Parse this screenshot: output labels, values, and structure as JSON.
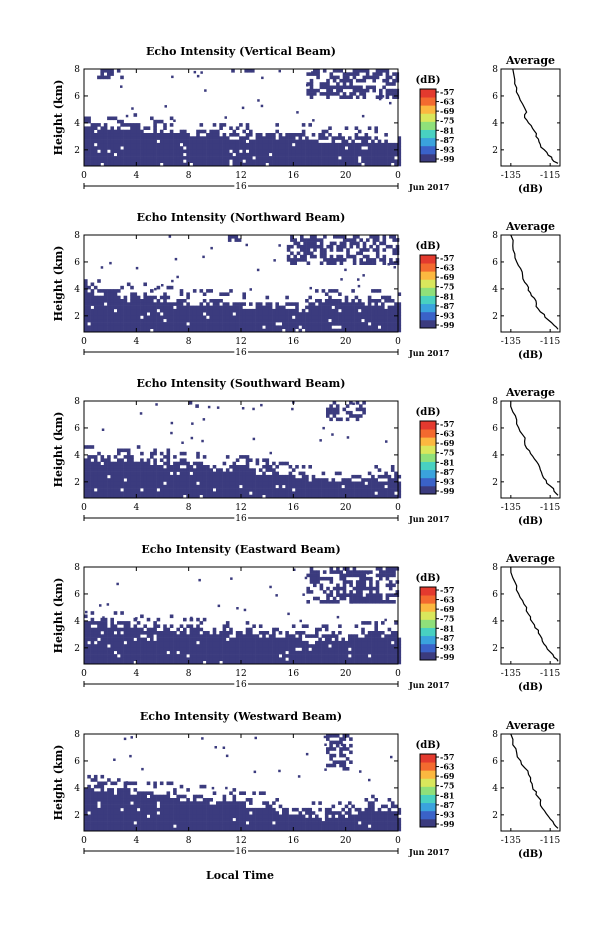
{
  "figure": {
    "xlabel": "Local Time",
    "date_label": "Jun 2017",
    "day_label": "16",
    "colorbar_unit": "(dB)",
    "avg_title": "Average",
    "avg_xlabel": "(dB)",
    "colors": [
      "#3b3b7e",
      "#3a62c8",
      "#3aa3dd",
      "#48d1c1",
      "#8fe07a",
      "#d9e75c",
      "#fbb840",
      "#f36a2f",
      "#e33a2e"
    ]
  },
  "chart_data": [
    {
      "type": "heatmap",
      "title": "Echo Intensity (Vertical Beam)",
      "ylabel": "Height (km)",
      "x_ticks": [
        "0",
        "4",
        "8",
        "12",
        "16",
        "20",
        "0"
      ],
      "y_ticks": [
        "2",
        "4",
        "6",
        "8"
      ],
      "xlim": [
        0,
        24
      ],
      "ylim": [
        0.8,
        8.0
      ],
      "colorbar_ticks": [
        "-57",
        "-63",
        "-69",
        "-75",
        "-81",
        "-87",
        "-93",
        "-99"
      ],
      "low_echo": [
        4.1,
        4.1,
        4.0,
        3.8,
        3.6,
        3.5,
        3.4,
        3.4,
        3.3,
        3.2,
        3.1,
        3.0,
        3.0
      ],
      "high_echo": [
        [
          17,
          24,
          6.0,
          8.0
        ],
        [
          1,
          3,
          7.5,
          8.0
        ],
        [
          11,
          13,
          7.8,
          8.0
        ]
      ],
      "average": {
        "title": "Average",
        "xlabel": "(dB)",
        "x_ticks": [
          "-135",
          "-115"
        ],
        "y_ticks": [
          "2",
          "4",
          "6",
          "8"
        ],
        "xlim": [
          -140,
          -110
        ],
        "ylim": [
          0.8,
          8.0
        ],
        "x": [
          -111,
          -114,
          -116,
          -118,
          -120,
          -121,
          -122,
          -124,
          -126,
          -128,
          -127,
          -129,
          -131,
          -132,
          -133,
          -134
        ],
        "y": [
          1.0,
          1.3,
          1.6,
          2.0,
          2.4,
          2.8,
          3.2,
          3.6,
          4.0,
          4.4,
          4.8,
          5.4,
          6.0,
          6.6,
          7.2,
          8.0
        ]
      }
    },
    {
      "type": "heatmap",
      "title": "Echo Intensity (Northward Beam)",
      "ylabel": "Height (km)",
      "x_ticks": [
        "0",
        "4",
        "8",
        "12",
        "16",
        "20",
        "0"
      ],
      "y_ticks": [
        "2",
        "4",
        "6",
        "8"
      ],
      "xlim": [
        0,
        24
      ],
      "ylim": [
        0.8,
        8.0
      ],
      "colorbar_ticks": [
        "-57",
        "-63",
        "-69",
        "-75",
        "-81",
        "-87",
        "-93",
        "-99"
      ],
      "low_echo": [
        4.0,
        4.0,
        3.8,
        3.6,
        3.4,
        3.3,
        3.2,
        3.2,
        3.0,
        3.4,
        3.5,
        3.4,
        3.3
      ],
      "high_echo": [
        [
          15.5,
          24,
          6.0,
          8.0
        ],
        [
          11,
          12,
          7.6,
          8.0
        ]
      ],
      "average": {
        "title": "Average",
        "xlabel": "(dB)",
        "x_ticks": [
          "-135",
          "-115"
        ],
        "y_ticks": [
          "2",
          "4",
          "6",
          "8"
        ],
        "xlim": [
          -140,
          -110
        ],
        "ylim": [
          0.8,
          8.0
        ],
        "x": [
          -111,
          -113,
          -116,
          -118,
          -121,
          -122,
          -123,
          -125,
          -126,
          -128,
          -129,
          -130,
          -132,
          -133,
          -134,
          -135
        ],
        "y": [
          1.0,
          1.3,
          1.7,
          2.1,
          2.5,
          2.9,
          3.3,
          3.7,
          4.1,
          4.5,
          5.0,
          5.5,
          6.0,
          6.6,
          7.2,
          8.0
        ]
      }
    },
    {
      "type": "heatmap",
      "title": "Echo Intensity (Southward Beam)",
      "ylabel": "Height (km)",
      "x_ticks": [
        "0",
        "4",
        "8",
        "12",
        "16",
        "20",
        "0"
      ],
      "y_ticks": [
        "2",
        "4",
        "6",
        "8"
      ],
      "xlim": [
        0,
        24
      ],
      "ylim": [
        0.8,
        8.0
      ],
      "colorbar_ticks": [
        "-57",
        "-63",
        "-69",
        "-75",
        "-81",
        "-87",
        "-93",
        "-99"
      ],
      "low_echo": [
        4.2,
        4.1,
        4.0,
        3.8,
        3.6,
        3.4,
        3.3,
        3.1,
        2.8,
        2.5,
        2.5,
        2.6,
        2.8
      ],
      "high_echo": [
        [
          18.5,
          21.5,
          6.6,
          8.0
        ],
        [
          8,
          9,
          7.6,
          8.0
        ]
      ],
      "average": {
        "title": "Average",
        "xlabel": "(dB)",
        "x_ticks": [
          "-135",
          "-115"
        ],
        "y_ticks": [
          "2",
          "4",
          "6",
          "8"
        ],
        "xlim": [
          -140,
          -110
        ],
        "ylim": [
          0.8,
          8.0
        ],
        "x": [
          -111,
          -113,
          -115,
          -117,
          -119,
          -120,
          -121,
          -123,
          -125,
          -127,
          -128,
          -129,
          -131,
          -132,
          -134,
          -135
        ],
        "y": [
          1.0,
          1.3,
          1.7,
          2.1,
          2.5,
          2.9,
          3.3,
          3.7,
          4.1,
          4.5,
          5.0,
          5.5,
          6.0,
          6.6,
          7.2,
          8.0
        ]
      }
    },
    {
      "type": "heatmap",
      "title": "Echo Intensity (Eastward Beam)",
      "ylabel": "Height (km)",
      "x_ticks": [
        "0",
        "4",
        "8",
        "12",
        "16",
        "20",
        "0"
      ],
      "y_ticks": [
        "2",
        "4",
        "6",
        "8"
      ],
      "xlim": [
        0,
        24
      ],
      "ylim": [
        0.8,
        8.0
      ],
      "colorbar_ticks": [
        "-57",
        "-63",
        "-69",
        "-75",
        "-81",
        "-87",
        "-93",
        "-99"
      ],
      "low_echo": [
        4.2,
        4.1,
        4.0,
        3.8,
        3.6,
        3.5,
        3.4,
        3.3,
        3.1,
        3.2,
        3.2,
        3.3,
        3.3
      ],
      "high_echo": [
        [
          17,
          24,
          5.5,
          8.0
        ]
      ],
      "average": {
        "title": "Average",
        "xlabel": "(dB)",
        "x_ticks": [
          "-135",
          "-115"
        ],
        "y_ticks": [
          "2",
          "4",
          "6",
          "8"
        ],
        "xlim": [
          -140,
          -110
        ],
        "ylim": [
          0.8,
          8.0
        ],
        "x": [
          -111,
          -113,
          -115,
          -117,
          -119,
          -120,
          -121,
          -123,
          -125,
          -126,
          -127,
          -129,
          -131,
          -132,
          -134,
          -135
        ],
        "y": [
          1.0,
          1.3,
          1.7,
          2.1,
          2.5,
          2.9,
          3.3,
          3.7,
          4.1,
          4.5,
          5.0,
          5.5,
          6.0,
          6.6,
          7.2,
          8.0
        ]
      }
    },
    {
      "type": "heatmap",
      "title": "Echo Intensity (Westward Beam)",
      "ylabel": "Height (km)",
      "x_ticks": [
        "0",
        "4",
        "8",
        "12",
        "16",
        "20",
        "0"
      ],
      "y_ticks": [
        "2",
        "4",
        "6",
        "8"
      ],
      "xlim": [
        0,
        24
      ],
      "ylim": [
        0.8,
        8.0
      ],
      "colorbar_ticks": [
        "-57",
        "-63",
        "-69",
        "-75",
        "-81",
        "-87",
        "-93",
        "-99"
      ],
      "low_echo": [
        4.3,
        4.2,
        4.0,
        3.8,
        3.6,
        3.4,
        3.2,
        3.0,
        2.6,
        2.3,
        2.6,
        2.8,
        2.9
      ],
      "high_echo": [
        [
          18.5,
          20.5,
          5.5,
          8.0
        ]
      ],
      "average": {
        "title": "Average",
        "xlabel": "(dB)",
        "x_ticks": [
          "-135",
          "-115"
        ],
        "y_ticks": [
          "2",
          "4",
          "6",
          "8"
        ],
        "xlim": [
          -140,
          -110
        ],
        "ylim": [
          0.8,
          8.0
        ],
        "x": [
          -111,
          -113,
          -115,
          -117,
          -119,
          -120,
          -121,
          -122,
          -124,
          -125,
          -126,
          -128,
          -130,
          -132,
          -134,
          -135
        ],
        "y": [
          1.0,
          1.3,
          1.7,
          2.1,
          2.5,
          2.9,
          3.3,
          3.7,
          4.1,
          4.5,
          5.0,
          5.5,
          6.0,
          6.6,
          7.2,
          8.0
        ]
      }
    }
  ]
}
